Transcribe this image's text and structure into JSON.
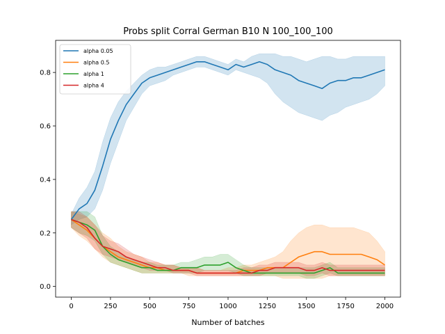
{
  "chart_data": {
    "type": "line",
    "title": "Probs split Corral German B10 N 100_100_100",
    "xlabel": "Number of batches",
    "ylabel": "",
    "xlim": [
      -100,
      2100
    ],
    "ylim": [
      -0.04,
      0.92
    ],
    "xticks": [
      0,
      250,
      500,
      750,
      1000,
      1250,
      1500,
      1750,
      2000
    ],
    "yticks": [
      0.0,
      0.2,
      0.4,
      0.6,
      0.8
    ],
    "xtick_labels": [
      "0",
      "250",
      "500",
      "750",
      "1000",
      "1250",
      "1500",
      "1750",
      "2000"
    ],
    "ytick_labels": [
      "0.0",
      "0.2",
      "0.4",
      "0.6",
      "0.8"
    ],
    "grid": false,
    "legend_position": "upper-left",
    "series": [
      {
        "name": "alpha 0.05",
        "color": "#1f77b4",
        "x": [
          0,
          50,
          100,
          150,
          200,
          250,
          300,
          350,
          400,
          450,
          500,
          550,
          600,
          650,
          700,
          750,
          800,
          850,
          900,
          950,
          1000,
          1050,
          1100,
          1150,
          1200,
          1250,
          1300,
          1350,
          1400,
          1450,
          1500,
          1550,
          1600,
          1650,
          1700,
          1750,
          1800,
          1850,
          1900,
          1950,
          2000
        ],
        "values": [
          0.25,
          0.29,
          0.31,
          0.36,
          0.45,
          0.55,
          0.62,
          0.68,
          0.72,
          0.76,
          0.78,
          0.79,
          0.8,
          0.81,
          0.82,
          0.83,
          0.84,
          0.84,
          0.83,
          0.82,
          0.81,
          0.83,
          0.82,
          0.83,
          0.84,
          0.83,
          0.81,
          0.8,
          0.79,
          0.77,
          0.76,
          0.75,
          0.74,
          0.76,
          0.77,
          0.77,
          0.78,
          0.78,
          0.79,
          0.8,
          0.81
        ],
        "lower": [
          0.23,
          0.25,
          0.26,
          0.29,
          0.36,
          0.46,
          0.54,
          0.62,
          0.67,
          0.72,
          0.75,
          0.76,
          0.77,
          0.79,
          0.8,
          0.81,
          0.82,
          0.82,
          0.81,
          0.8,
          0.79,
          0.81,
          0.8,
          0.79,
          0.78,
          0.76,
          0.72,
          0.69,
          0.67,
          0.65,
          0.64,
          0.63,
          0.62,
          0.64,
          0.65,
          0.67,
          0.68,
          0.69,
          0.7,
          0.72,
          0.75
        ],
        "upper": [
          0.27,
          0.33,
          0.37,
          0.43,
          0.54,
          0.63,
          0.69,
          0.73,
          0.76,
          0.79,
          0.81,
          0.82,
          0.82,
          0.83,
          0.84,
          0.85,
          0.86,
          0.86,
          0.85,
          0.84,
          0.83,
          0.85,
          0.84,
          0.86,
          0.87,
          0.87,
          0.87,
          0.86,
          0.86,
          0.85,
          0.84,
          0.85,
          0.86,
          0.86,
          0.85,
          0.85,
          0.86,
          0.86,
          0.86,
          0.86,
          0.86
        ]
      },
      {
        "name": "alpha 0.5",
        "color": "#ff7f0e",
        "x": [
          0,
          50,
          100,
          150,
          200,
          250,
          300,
          350,
          400,
          450,
          500,
          550,
          600,
          650,
          700,
          750,
          800,
          850,
          900,
          950,
          1000,
          1050,
          1100,
          1150,
          1200,
          1250,
          1300,
          1350,
          1400,
          1450,
          1500,
          1550,
          1600,
          1650,
          1700,
          1750,
          1800,
          1850,
          1900,
          1950,
          2000
        ],
        "values": [
          0.25,
          0.23,
          0.21,
          0.18,
          0.15,
          0.13,
          0.11,
          0.1,
          0.09,
          0.08,
          0.07,
          0.07,
          0.06,
          0.06,
          0.06,
          0.06,
          0.05,
          0.05,
          0.05,
          0.05,
          0.05,
          0.05,
          0.06,
          0.06,
          0.06,
          0.07,
          0.07,
          0.07,
          0.09,
          0.11,
          0.12,
          0.13,
          0.13,
          0.12,
          0.12,
          0.12,
          0.12,
          0.12,
          0.11,
          0.1,
          0.08
        ],
        "lower": [
          0.22,
          0.19,
          0.17,
          0.14,
          0.11,
          0.09,
          0.08,
          0.07,
          0.06,
          0.05,
          0.05,
          0.05,
          0.05,
          0.05,
          0.05,
          0.04,
          0.04,
          0.04,
          0.04,
          0.04,
          0.04,
          0.04,
          0.04,
          0.04,
          0.04,
          0.04,
          0.04,
          0.03,
          0.03,
          0.03,
          0.03,
          0.03,
          0.03,
          0.04,
          0.04,
          0.04,
          0.04,
          0.04,
          0.04,
          0.04,
          0.04
        ],
        "upper": [
          0.28,
          0.27,
          0.26,
          0.23,
          0.2,
          0.18,
          0.15,
          0.13,
          0.12,
          0.11,
          0.09,
          0.09,
          0.08,
          0.08,
          0.07,
          0.07,
          0.07,
          0.06,
          0.06,
          0.06,
          0.07,
          0.07,
          0.08,
          0.08,
          0.09,
          0.1,
          0.11,
          0.13,
          0.17,
          0.2,
          0.22,
          0.23,
          0.23,
          0.22,
          0.22,
          0.22,
          0.22,
          0.21,
          0.2,
          0.17,
          0.13
        ]
      },
      {
        "name": "alpha 1",
        "color": "#2ca02c",
        "x": [
          0,
          50,
          100,
          150,
          200,
          250,
          300,
          350,
          400,
          450,
          500,
          550,
          600,
          650,
          700,
          750,
          800,
          850,
          900,
          950,
          1000,
          1050,
          1100,
          1150,
          1200,
          1250,
          1300,
          1350,
          1400,
          1450,
          1500,
          1550,
          1600,
          1650,
          1700,
          1750,
          1800,
          1850,
          1900,
          1950,
          2000
        ],
        "values": [
          0.25,
          0.24,
          0.23,
          0.21,
          0.15,
          0.12,
          0.1,
          0.09,
          0.08,
          0.07,
          0.07,
          0.06,
          0.06,
          0.06,
          0.07,
          0.07,
          0.07,
          0.08,
          0.08,
          0.08,
          0.09,
          0.07,
          0.06,
          0.05,
          0.05,
          0.05,
          0.05,
          0.05,
          0.05,
          0.05,
          0.05,
          0.05,
          0.06,
          0.07,
          0.05,
          0.05,
          0.05,
          0.05,
          0.05,
          0.05,
          0.05
        ],
        "lower": [
          0.22,
          0.2,
          0.19,
          0.17,
          0.12,
          0.09,
          0.08,
          0.07,
          0.06,
          0.05,
          0.05,
          0.05,
          0.05,
          0.05,
          0.05,
          0.05,
          0.05,
          0.06,
          0.06,
          0.06,
          0.06,
          0.05,
          0.04,
          0.04,
          0.04,
          0.04,
          0.04,
          0.04,
          0.04,
          0.04,
          0.03,
          0.03,
          0.04,
          0.05,
          0.04,
          0.04,
          0.04,
          0.04,
          0.04,
          0.04,
          0.04
        ],
        "upper": [
          0.28,
          0.28,
          0.28,
          0.26,
          0.19,
          0.15,
          0.13,
          0.11,
          0.1,
          0.09,
          0.09,
          0.08,
          0.08,
          0.08,
          0.09,
          0.09,
          0.1,
          0.11,
          0.11,
          0.12,
          0.12,
          0.1,
          0.08,
          0.07,
          0.07,
          0.07,
          0.07,
          0.07,
          0.07,
          0.07,
          0.07,
          0.07,
          0.08,
          0.09,
          0.07,
          0.07,
          0.07,
          0.07,
          0.07,
          0.07,
          0.07
        ]
      },
      {
        "name": "alpha 4",
        "color": "#d62728",
        "x": [
          0,
          50,
          100,
          150,
          200,
          250,
          300,
          350,
          400,
          450,
          500,
          550,
          600,
          650,
          700,
          750,
          800,
          850,
          900,
          950,
          1000,
          1050,
          1100,
          1150,
          1200,
          1250,
          1300,
          1350,
          1400,
          1450,
          1500,
          1550,
          1600,
          1650,
          1700,
          1750,
          1800,
          1850,
          1900,
          1950,
          2000
        ],
        "values": [
          0.25,
          0.24,
          0.22,
          0.18,
          0.15,
          0.14,
          0.13,
          0.11,
          0.1,
          0.09,
          0.08,
          0.07,
          0.07,
          0.06,
          0.06,
          0.06,
          0.05,
          0.05,
          0.05,
          0.05,
          0.05,
          0.05,
          0.05,
          0.05,
          0.06,
          0.06,
          0.07,
          0.07,
          0.07,
          0.07,
          0.06,
          0.06,
          0.07,
          0.06,
          0.06,
          0.06,
          0.06,
          0.06,
          0.06,
          0.06,
          0.06
        ],
        "lower": [
          0.22,
          0.2,
          0.18,
          0.14,
          0.12,
          0.11,
          0.1,
          0.09,
          0.08,
          0.07,
          0.06,
          0.06,
          0.06,
          0.05,
          0.05,
          0.05,
          0.04,
          0.04,
          0.04,
          0.04,
          0.04,
          0.04,
          0.04,
          0.04,
          0.04,
          0.05,
          0.05,
          0.05,
          0.05,
          0.05,
          0.04,
          0.04,
          0.05,
          0.04,
          0.04,
          0.04,
          0.04,
          0.04,
          0.04,
          0.04,
          0.04
        ],
        "upper": [
          0.28,
          0.28,
          0.26,
          0.23,
          0.19,
          0.17,
          0.16,
          0.14,
          0.12,
          0.11,
          0.1,
          0.09,
          0.08,
          0.08,
          0.07,
          0.07,
          0.07,
          0.06,
          0.06,
          0.06,
          0.06,
          0.06,
          0.07,
          0.07,
          0.08,
          0.08,
          0.09,
          0.09,
          0.09,
          0.09,
          0.08,
          0.08,
          0.09,
          0.08,
          0.08,
          0.08,
          0.08,
          0.08,
          0.08,
          0.08,
          0.08
        ]
      }
    ]
  }
}
